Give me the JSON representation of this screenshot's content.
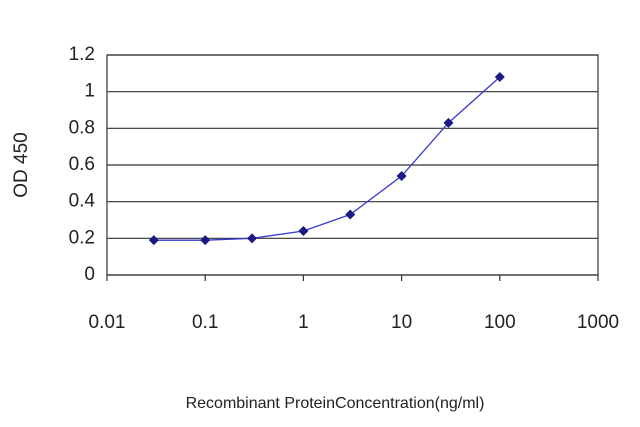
{
  "chart_data": {
    "type": "line",
    "x_label": "Recombinant ProteinConcentration(ng/ml)",
    "y_label": "OD 450",
    "x": [
      0.03,
      0.1,
      0.3,
      1,
      3,
      10,
      30,
      100
    ],
    "series": [
      {
        "color": "#1a1a80",
        "values": [
          0.19,
          0.19,
          0.2,
          0.24,
          0.33,
          0.54,
          0.83,
          1.08
        ]
      }
    ],
    "xlim": [
      0.01,
      1000
    ],
    "xticks": [
      0.01,
      0.1,
      1,
      10,
      100,
      1000
    ],
    "xscale": "log",
    "ylim": [
      0,
      1.2
    ],
    "yticks": [
      0,
      0.2,
      0.4,
      0.6,
      0.8,
      1,
      1.2
    ],
    "grid": true
  }
}
